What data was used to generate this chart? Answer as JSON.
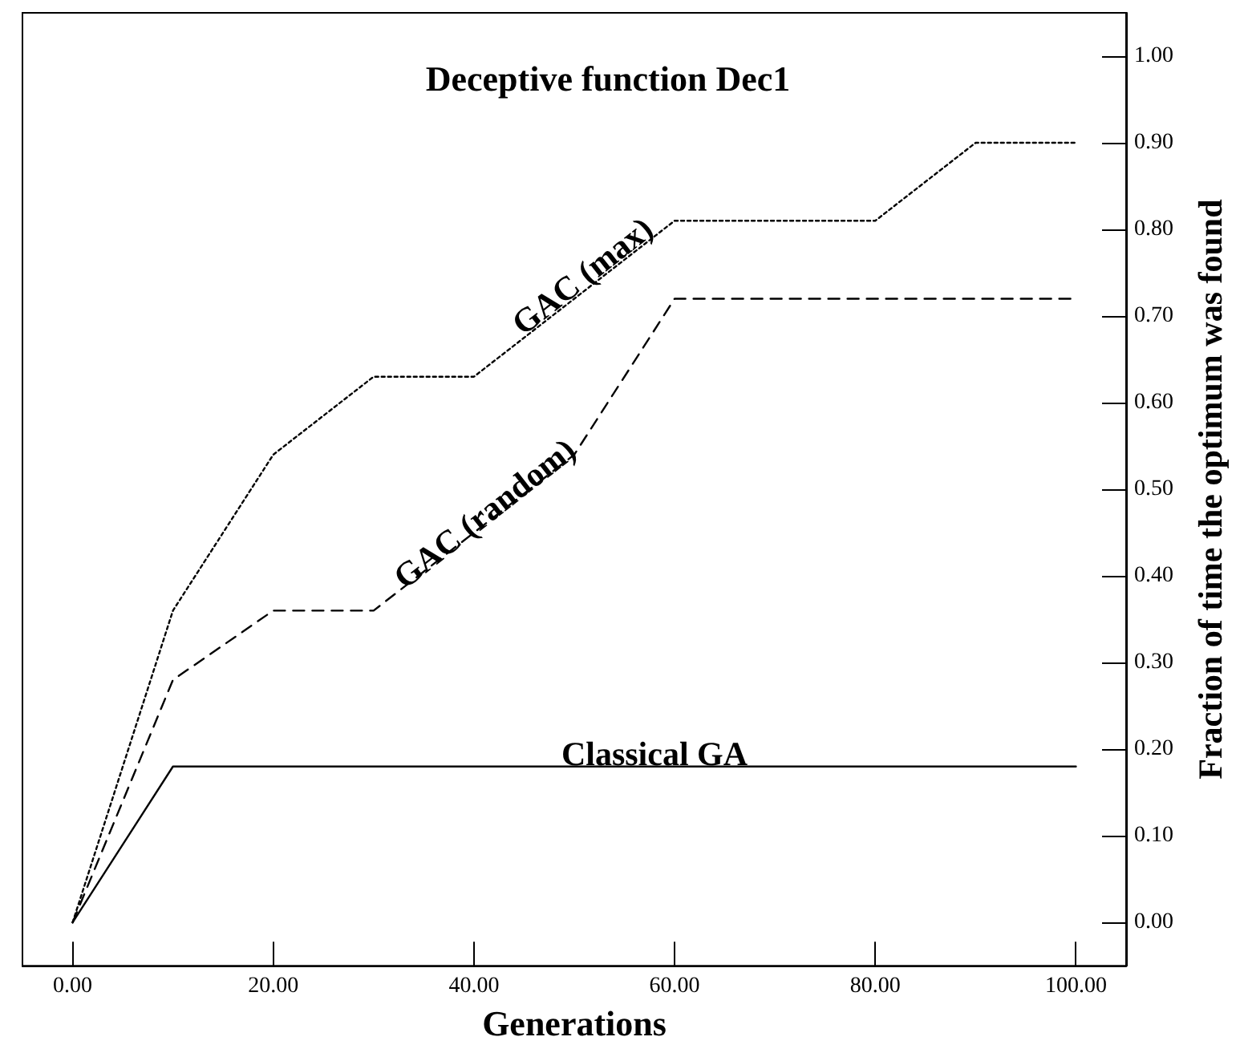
{
  "chart_data": {
    "type": "line",
    "title": "Deceptive function Dec1",
    "xlabel": "Generations",
    "ylabel": "Fraction of time the optimum was found",
    "xlim": [
      -5,
      105
    ],
    "xticks": [
      {
        "value": 0,
        "label": "0.00"
      },
      {
        "value": 20,
        "label": "20.00"
      },
      {
        "value": 40,
        "label": "40.00"
      },
      {
        "value": 60,
        "label": "60.00"
      },
      {
        "value": 80,
        "label": "80.00"
      },
      {
        "value": 100,
        "label": "100.00"
      }
    ],
    "ylim": [
      -0.05,
      1.05
    ],
    "yticks": [
      {
        "value": 0,
        "label": "0.00"
      },
      {
        "value": 0.1,
        "label": "0.10"
      },
      {
        "value": 0.2,
        "label": "0.20"
      },
      {
        "value": 0.3,
        "label": "0.30"
      },
      {
        "value": 0.4,
        "label": "0.40"
      },
      {
        "value": 0.5,
        "label": "0.50"
      },
      {
        "value": 0.6,
        "label": "0.60"
      },
      {
        "value": 0.7,
        "label": "0.70"
      },
      {
        "value": 0.8,
        "label": "0.80"
      },
      {
        "value": 0.9,
        "label": "0.90"
      },
      {
        "value": 1,
        "label": "1.00"
      }
    ],
    "series": [
      {
        "name": "GAC (max)",
        "color": "#000000",
        "line_style": "dotted",
        "x": [
          0,
          10,
          20,
          30,
          40,
          60,
          80,
          90,
          100
        ],
        "values": [
          0,
          0.36,
          0.54,
          0.63,
          0.63,
          0.81,
          0.81,
          0.9,
          0.9
        ]
      },
      {
        "name": "GAC (random)",
        "color": "#000000",
        "line_style": "dashed",
        "x": [
          0,
          10,
          20,
          30,
          50,
          60,
          100
        ],
        "values": [
          0,
          0.28,
          0.36,
          0.36,
          0.54,
          0.72,
          0.72
        ]
      },
      {
        "name": "Classical GA",
        "color": "#000000",
        "line_style": "solid",
        "x": [
          0,
          10,
          100
        ],
        "values": [
          0,
          0.18,
          0.18
        ]
      }
    ],
    "grid": false,
    "marker": "none"
  }
}
